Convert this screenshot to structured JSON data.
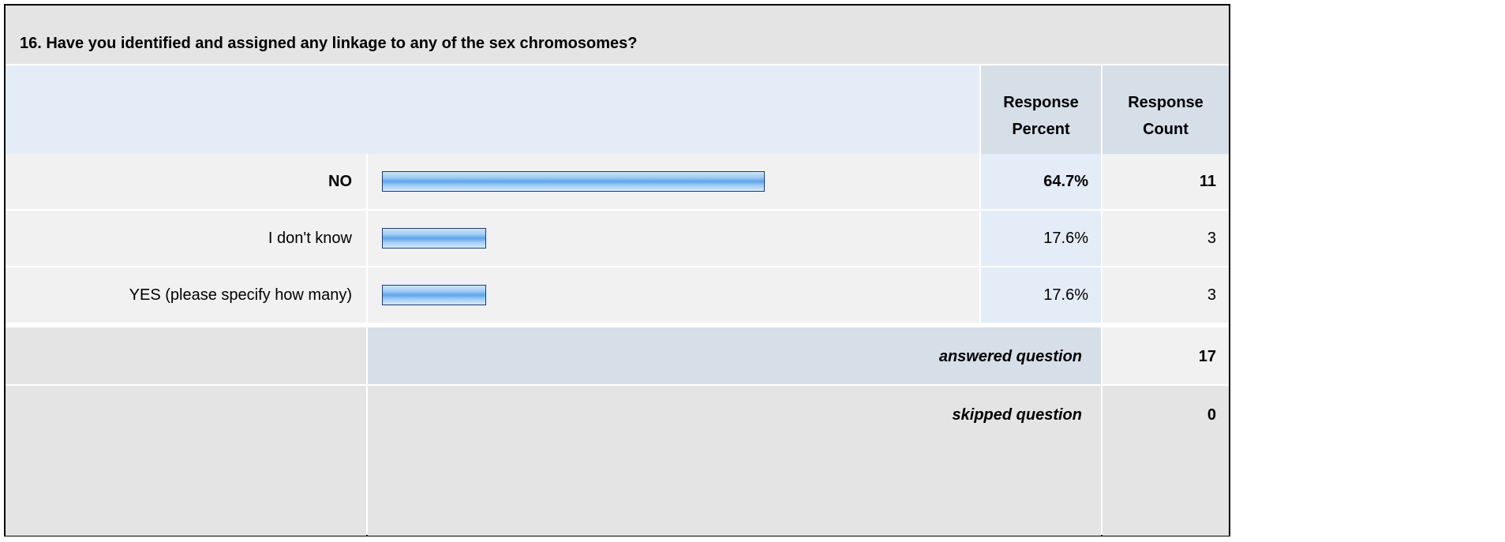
{
  "question": "16. Have you identified and assigned any linkage to any of the sex chromosomes?",
  "headers": {
    "percent": [
      "Response",
      "Percent"
    ],
    "count": [
      "Response",
      "Count"
    ]
  },
  "chart_data": {
    "type": "bar",
    "title": "16. Have you identified and assigned any linkage to any of the sex chromosomes?",
    "categories": [
      "NO",
      "I don't know",
      "YES (please specify how many)"
    ],
    "values": [
      64.7,
      17.6,
      17.6
    ],
    "counts": [
      11,
      3,
      3
    ],
    "percent_labels": [
      "64.7%",
      "17.6%",
      "17.6%"
    ],
    "count_labels": [
      "11",
      "3",
      "3"
    ],
    "bold": [
      true,
      false,
      false
    ],
    "xlim": [
      0,
      100
    ],
    "bar_color": "#5aa5ec",
    "bar_border": "#1d3c78"
  },
  "summary": {
    "answered_label": "answered question",
    "answered_value": "17",
    "skipped_label": "skipped question",
    "skipped_value": "0"
  }
}
